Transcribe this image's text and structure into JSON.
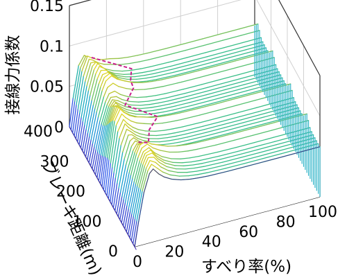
{
  "chart_data": {
    "type": "surface",
    "title": "",
    "zlabel": "接線力係数",
    "ylabel": "ブレーキ距離(m)",
    "xlabel": "すべり率(%)",
    "x_ticks": [
      "0",
      "20",
      "40",
      "60",
      "80",
      "100"
    ],
    "y_ticks": [
      "0",
      "100",
      "200",
      "300",
      "400"
    ],
    "z_ticks": [
      "0",
      "0.05",
      "0.1",
      "0.15"
    ],
    "xlim": [
      0,
      100
    ],
    "ylim": [
      0,
      400
    ],
    "zlim": [
      0,
      0.15
    ],
    "grid": true,
    "colormap": "parula (blue to yellow, by height)",
    "highlight_line_color": "#c81e8c",
    "surface": {
      "x": [
        0,
        2,
        5,
        8,
        10,
        13,
        16,
        20,
        25,
        30,
        35,
        40,
        50,
        60,
        70,
        80,
        90,
        100
      ],
      "peak_slip_percent": 10,
      "peak_coefficient": 0.09,
      "plateau_coefficient": 0.062,
      "ridge_distances_m": [
        80,
        180,
        290,
        380
      ],
      "y_step_m": 10
    },
    "highlight_path": {
      "y": [
        400,
        360,
        320,
        280,
        240,
        200,
        160,
        120,
        100
      ],
      "peak_slip_percent": [
        12,
        30,
        26,
        24,
        16,
        30,
        22,
        18,
        10
      ]
    }
  }
}
